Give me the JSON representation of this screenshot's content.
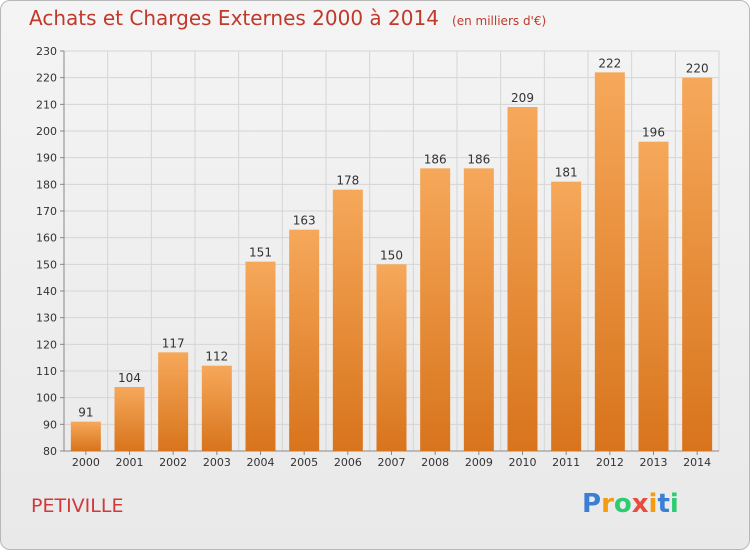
{
  "title": "Achats et Charges Externes 2000 à 2014",
  "unit": "(en milliers d'€)",
  "city": "PETIVILLE",
  "logo": {
    "letters": [
      "P",
      "r",
      "o",
      "x",
      "i",
      "t",
      "i"
    ],
    "colors": [
      "#3b7fd4",
      "#f39c12",
      "#2ecc71",
      "#e74c3c",
      "#f39c12",
      "#3b7fd4",
      "#2ecc71"
    ]
  },
  "colors": {
    "bar_light": "#f6a85a",
    "bar_dark": "#d8741c",
    "title": "#c0392b",
    "grid": "#d5d5d5"
  },
  "chart_data": {
    "type": "bar",
    "categories": [
      "2000",
      "2001",
      "2002",
      "2003",
      "2004",
      "2005",
      "2006",
      "2007",
      "2008",
      "2009",
      "2010",
      "2011",
      "2012",
      "2013",
      "2014"
    ],
    "values": [
      91,
      104,
      117,
      112,
      151,
      163,
      178,
      150,
      186,
      186,
      209,
      181,
      222,
      196,
      220
    ],
    "ylim": [
      80,
      230
    ],
    "yticks": [
      80,
      90,
      100,
      110,
      120,
      130,
      140,
      150,
      160,
      170,
      180,
      190,
      200,
      210,
      220,
      230
    ],
    "grid": true,
    "xlabel": "",
    "ylabel": ""
  }
}
